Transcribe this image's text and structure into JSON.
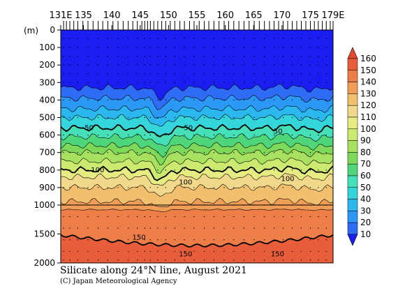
{
  "chart_data": {
    "type": "heatmap",
    "title": "Silicate along 24°N line, August 2021",
    "copyright": "(C) Japan Meteorological Agency",
    "depth_unit": "(m)",
    "x_ticks": [
      "131E",
      "135",
      "140",
      "145",
      "150",
      "155",
      "160",
      "165",
      "170",
      "175",
      "179E"
    ],
    "x_tick_values": [
      131,
      135,
      140,
      145,
      150,
      155,
      160,
      165,
      170,
      175,
      179
    ],
    "xlim": [
      131,
      179
    ],
    "y_ticks_upper": [
      "0",
      "100",
      "200",
      "300",
      "400",
      "500",
      "600",
      "700",
      "800",
      "900",
      "1000"
    ],
    "y_ticks_lower": [
      "1500",
      "2000"
    ],
    "ylim": [
      0,
      2000
    ],
    "colorbar": {
      "labels": [
        "160",
        "150",
        "140",
        "130",
        "120",
        "110",
        "100",
        "90",
        "80",
        "70",
        "60",
        "50",
        "40",
        "30",
        "20",
        "10"
      ],
      "colors": [
        "#1e2ff0",
        "#2f6cf5",
        "#2c98f5",
        "#2ab8ee",
        "#34d6dc",
        "#46e0b8",
        "#4fd67a",
        "#7ed85a",
        "#a8e060",
        "#cdea70",
        "#e6ec82",
        "#f1d88a",
        "#f1bf6d",
        "#f09d57",
        "#ee7e48",
        "#e85e3a"
      ],
      "low_end_color": "#1a1ef0",
      "high_end_color": "#e54a30"
    },
    "contour_labels": [
      "50",
      "50",
      "50",
      "100",
      "100",
      "100",
      "150",
      "150",
      "150"
    ],
    "stations_lon": [
      131.5,
      132.0,
      132.6,
      133.3,
      134.0,
      134.9,
      135.8,
      136.7,
      137.6,
      138.4,
      139.3,
      140.2,
      141.1,
      142.0,
      142.9,
      143.7,
      144.5,
      145.3,
      145.8,
      146.3,
      146.8,
      147.4,
      148.1,
      148.8,
      149.5,
      150.3,
      151.1,
      152.0,
      152.8,
      153.7,
      154.5,
      155.4,
      156.3,
      157.1,
      158.0,
      158.9,
      159.8,
      160.6,
      161.5,
      162.4,
      163.3,
      164.2,
      165.1,
      166.0,
      166.9,
      167.8,
      168.6,
      169.4,
      170.2,
      171.0,
      171.8,
      172.6,
      173.4,
      174.2,
      175.0,
      175.7,
      176.4,
      177.1,
      177.8,
      178.5,
      179.0
    ]
  }
}
